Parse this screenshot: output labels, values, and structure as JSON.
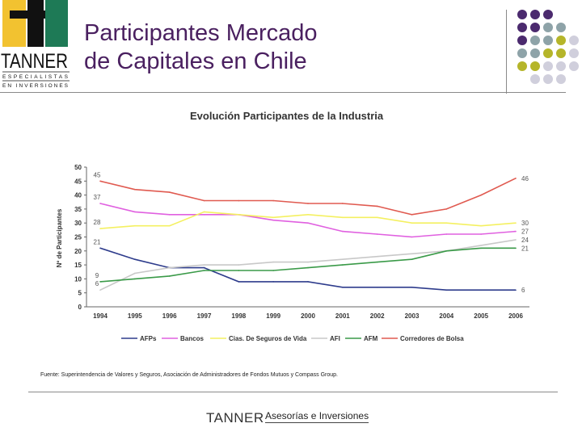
{
  "header": {
    "title_line1": "Participantes Mercado",
    "title_line2": "de Capitales en Chile"
  },
  "logo": {
    "brand": "TANNER",
    "line1": "ESPECIALISTAS",
    "line2": "EN INVERSIONES",
    "colors": {
      "yellow": "#f2c230",
      "black": "#111111",
      "green": "#1e7a56"
    }
  },
  "decor": {
    "dot_colors": [
      "#4b2a6e",
      "#8ea3a8",
      "#b5b52a",
      "#d0cfdc"
    ]
  },
  "chart_data": {
    "type": "line",
    "title": "Evolución Participantes de la Industria",
    "xlabel": "",
    "ylabel": "Nº de Participantes",
    "ylim": [
      0,
      50
    ],
    "yticks": [
      "0",
      "5",
      "10",
      "15",
      "20",
      "25",
      "30",
      "35",
      "40",
      "45",
      "50"
    ],
    "categories": [
      "1994",
      "1995",
      "1996",
      "1997",
      "1998",
      "1999",
      "2000",
      "2001",
      "2002",
      "2003",
      "2004",
      "2005",
      "2006"
    ],
    "series": [
      {
        "name": "AFPs",
        "color": "#2e3c8c",
        "values": [
          21,
          17,
          14,
          14,
          9,
          9,
          9,
          7,
          7,
          7,
          6,
          6,
          6
        ],
        "start_label": "21",
        "end_label": "6"
      },
      {
        "name": "Bancos",
        "color": "#e060e0",
        "values": [
          37,
          34,
          33,
          33,
          33,
          31,
          30,
          27,
          26,
          25,
          26,
          26,
          27
        ],
        "start_label": "37",
        "end_label": "27"
      },
      {
        "name": "Cias. De Seguros de Vida",
        "color": "#f4f060",
        "values": [
          28,
          29,
          29,
          34,
          33,
          32,
          33,
          32,
          32,
          30,
          30,
          29,
          30
        ],
        "start_label": "28",
        "end_label": "30"
      },
      {
        "name": "AFI",
        "color": "#c8c8c8",
        "values": [
          6,
          12,
          14,
          15,
          15,
          16,
          16,
          17,
          18,
          19,
          20,
          22,
          24
        ],
        "start_label": "6",
        "end_label": "24"
      },
      {
        "name": "AFM",
        "color": "#3a9a48",
        "values": [
          9,
          10,
          11,
          13,
          13,
          13,
          14,
          15,
          16,
          17,
          20,
          21,
          21
        ],
        "start_label": "9",
        "end_label": "21"
      },
      {
        "name": "Corredores de Bolsa",
        "color": "#e05a50",
        "values": [
          45,
          42,
          41,
          38,
          38,
          38,
          37,
          37,
          36,
          33,
          35,
          40,
          46
        ],
        "start_label": "45",
        "end_label": "46"
      }
    ]
  },
  "source": {
    "text": "Fuente: Superintendencia de Valores y Seguros, Asociación de Administradores de Fondos Mutuos y Compass Group."
  },
  "footer": {
    "brand": "TANNER",
    "text": "Asesorías e Inversiones"
  }
}
